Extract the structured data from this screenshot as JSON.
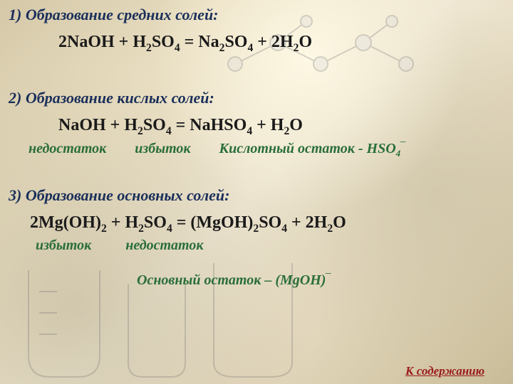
{
  "colors": {
    "heading": "#1a2f5a",
    "equation": "#1a1a1a",
    "annotation": "#2a6e3a",
    "link": "#9a1a1a",
    "bg_light": "#f0e8d4",
    "bg_dark": "#c8bc98"
  },
  "typography": {
    "heading_size": 22,
    "equation_size": 24,
    "annotation_size": 20,
    "link_size": 17,
    "family": "Times New Roman",
    "style": "italic for headings/annotations"
  },
  "section1": {
    "heading": "1) Образование средних солей:",
    "equation_html": "2NaOH + H<sub>2</sub>SO<sub>4</sub> = Na<sub>2</sub>SO<sub>4</sub> + 2H<sub>2</sub>O"
  },
  "section2": {
    "heading": "2) Образование кислых солей:",
    "equation_html": "NaOH + H<sub>2</sub>SO<sub>4</sub> = NaHSO<sub>4</sub> + H<sub>2</sub>O",
    "ann_left": "недостаток",
    "ann_mid": "избыток",
    "residue_html": "Кислотный остаток - HSO<sub>4</sub>‾"
  },
  "section3": {
    "heading": "3) Образование основных солей:",
    "equation_html": "2Mg(OH)<sub>2</sub> + H<sub>2</sub>SO<sub>4</sub> = (MgOH)<sub>2</sub>SO<sub>4</sub> + 2H<sub>2</sub>O",
    "ann_left": "избыток",
    "ann_mid": "недостаток",
    "residue_html": "Основный остаток – (MgOH)‾"
  },
  "link": {
    "label": "К содержанию"
  }
}
